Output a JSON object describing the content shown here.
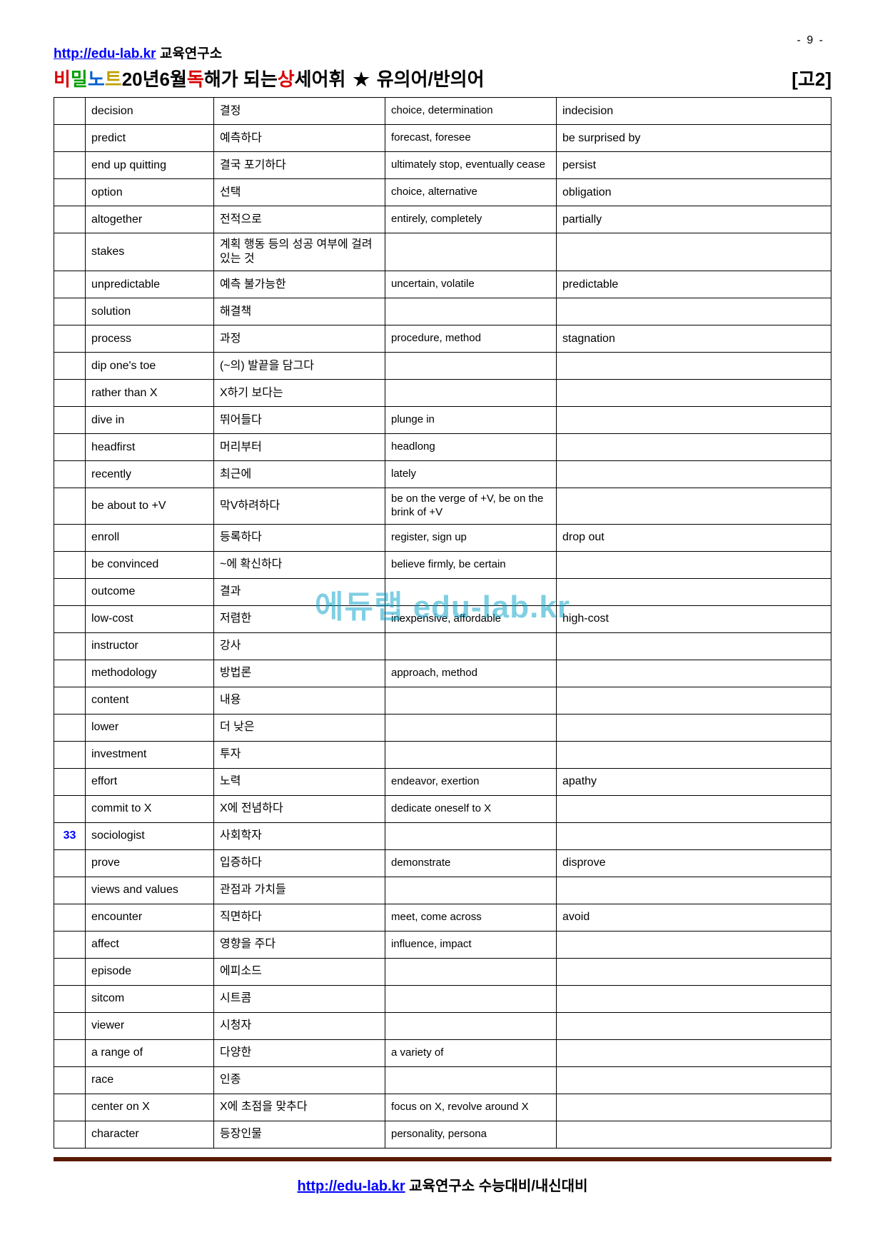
{
  "page_number": "- 9 -",
  "header_link": "http://edu-lab.kr",
  "header_link_suffix": " 교육연구소",
  "logo": {
    "bi": "비",
    "mil": "밀",
    "no": "노",
    "teu": "트"
  },
  "title": {
    "year": " 20년 ",
    "month": " 6월 ",
    "dok_red": " 독",
    "dok_rest": "해가  되는 ",
    "sang_red": " 상",
    "sang_rest": "세어휘 ",
    "star": "★",
    "tail": " 유의어/반의어",
    "level": "[고2]"
  },
  "watermark": "에듀랩 edu-lab.kr",
  "footer_link": "http://edu-lab.kr",
  "footer_suffix": " 교육연구소  수능대비/내신대비",
  "columns": [
    "num",
    "eng",
    "kor",
    "syn",
    "ant"
  ],
  "rows": [
    {
      "num": "",
      "eng": "decision",
      "kor": "결정",
      "syn": "choice, determination",
      "ant": "indecision"
    },
    {
      "num": "",
      "eng": "predict",
      "kor": "예측하다",
      "syn": "forecast, foresee",
      "ant": "be surprised by"
    },
    {
      "num": "",
      "eng": "end up quitting",
      "kor": "결국 포기하다",
      "syn": "ultimately stop, eventually cease",
      "ant": "persist"
    },
    {
      "num": "",
      "eng": "option",
      "kor": "선택",
      "syn": "choice, alternative",
      "ant": "obligation"
    },
    {
      "num": "",
      "eng": "altogether",
      "kor": "전적으로",
      "syn": "entirely, completely",
      "ant": "partially"
    },
    {
      "num": "",
      "eng": "stakes",
      "kor": "계획 행동 등의 성공 여부에 걸려 있는 것",
      "syn": "",
      "ant": ""
    },
    {
      "num": "",
      "eng": "unpredictable",
      "kor": "예측 불가능한",
      "syn": "uncertain, volatile",
      "ant": "predictable"
    },
    {
      "num": "",
      "eng": "solution",
      "kor": "해결책",
      "syn": "",
      "ant": ""
    },
    {
      "num": "",
      "eng": "process",
      "kor": "과정",
      "syn": "procedure, method",
      "ant": "stagnation"
    },
    {
      "num": "",
      "eng": "dip one's toe",
      "kor": "(~의) 발끝을 담그다",
      "syn": "",
      "ant": ""
    },
    {
      "num": "",
      "eng": "rather than X",
      "kor": "X하기 보다는",
      "syn": "",
      "ant": ""
    },
    {
      "num": "",
      "eng": "dive in",
      "kor": "뛰어들다",
      "syn": "plunge in",
      "ant": ""
    },
    {
      "num": "",
      "eng": "headfirst",
      "kor": "머리부터",
      "syn": "headlong",
      "ant": ""
    },
    {
      "num": "",
      "eng": "recently",
      "kor": "최근에",
      "syn": "lately",
      "ant": ""
    },
    {
      "num": "",
      "eng": "be about to +V",
      "kor": "막V하려하다",
      "syn": " be on the verge of +V, be on the brink of +V",
      "ant": ""
    },
    {
      "num": "",
      "eng": "enroll",
      "kor": "등록하다",
      "syn": "register, sign up",
      "ant": "drop out"
    },
    {
      "num": "",
      "eng": "be convinced",
      "kor": "~에 확신하다",
      "syn": "believe firmly, be certain",
      "ant": ""
    },
    {
      "num": "",
      "eng": "outcome",
      "kor": "결과",
      "syn": "",
      "ant": ""
    },
    {
      "num": "",
      "eng": "low-cost",
      "kor": "저렴한",
      "syn": "inexpensive, affordable",
      "ant": "high-cost"
    },
    {
      "num": "",
      "eng": "instructor",
      "kor": "강사",
      "syn": "",
      "ant": ""
    },
    {
      "num": "",
      "eng": "methodology",
      "kor": "방법론",
      "syn": "approach, method",
      "ant": ""
    },
    {
      "num": "",
      "eng": "content",
      "kor": "내용",
      "syn": "",
      "ant": ""
    },
    {
      "num": "",
      "eng": "lower",
      "kor": "더 낮은",
      "syn": "",
      "ant": ""
    },
    {
      "num": "",
      "eng": "investment",
      "kor": "투자",
      "syn": "",
      "ant": ""
    },
    {
      "num": "",
      "eng": "effort",
      "kor": "노력",
      "syn": "endeavor, exertion",
      "ant": "apathy"
    },
    {
      "num": "",
      "eng": "commit to X",
      "kor": "X에 전념하다",
      "syn": "dedicate oneself to X",
      "ant": ""
    },
    {
      "num": "33",
      "eng": "sociologist",
      "kor": "사회학자",
      "syn": "",
      "ant": ""
    },
    {
      "num": "",
      "eng": "prove",
      "kor": "입증하다",
      "syn": "demonstrate",
      "ant": "disprove"
    },
    {
      "num": "",
      "eng": "views and values",
      "kor": "관점과 가치들",
      "syn": "",
      "ant": ""
    },
    {
      "num": "",
      "eng": "encounter",
      "kor": "직면하다",
      "syn": "meet, come across",
      "ant": "avoid"
    },
    {
      "num": "",
      "eng": "affect",
      "kor": "영향을 주다",
      "syn": "influence, impact",
      "ant": ""
    },
    {
      "num": "",
      "eng": "episode",
      "kor": "에피소드",
      "syn": "",
      "ant": ""
    },
    {
      "num": "",
      "eng": "sitcom",
      "kor": "시트콤",
      "syn": "",
      "ant": ""
    },
    {
      "num": "",
      "eng": "viewer",
      "kor": "시청자",
      "syn": "",
      "ant": ""
    },
    {
      "num": "",
      "eng": "a range of",
      "kor": "다양한",
      "syn": "a variety of",
      "ant": ""
    },
    {
      "num": "",
      "eng": "race",
      "kor": "인종",
      "syn": "",
      "ant": ""
    },
    {
      "num": "",
      "eng": "center on X",
      "kor": "X에 초점을 맞추다",
      "syn": "focus on X, revolve around X",
      "ant": ""
    },
    {
      "num": "",
      "eng": "character",
      "kor": "등장인물",
      "syn": "personality, persona",
      "ant": ""
    }
  ]
}
